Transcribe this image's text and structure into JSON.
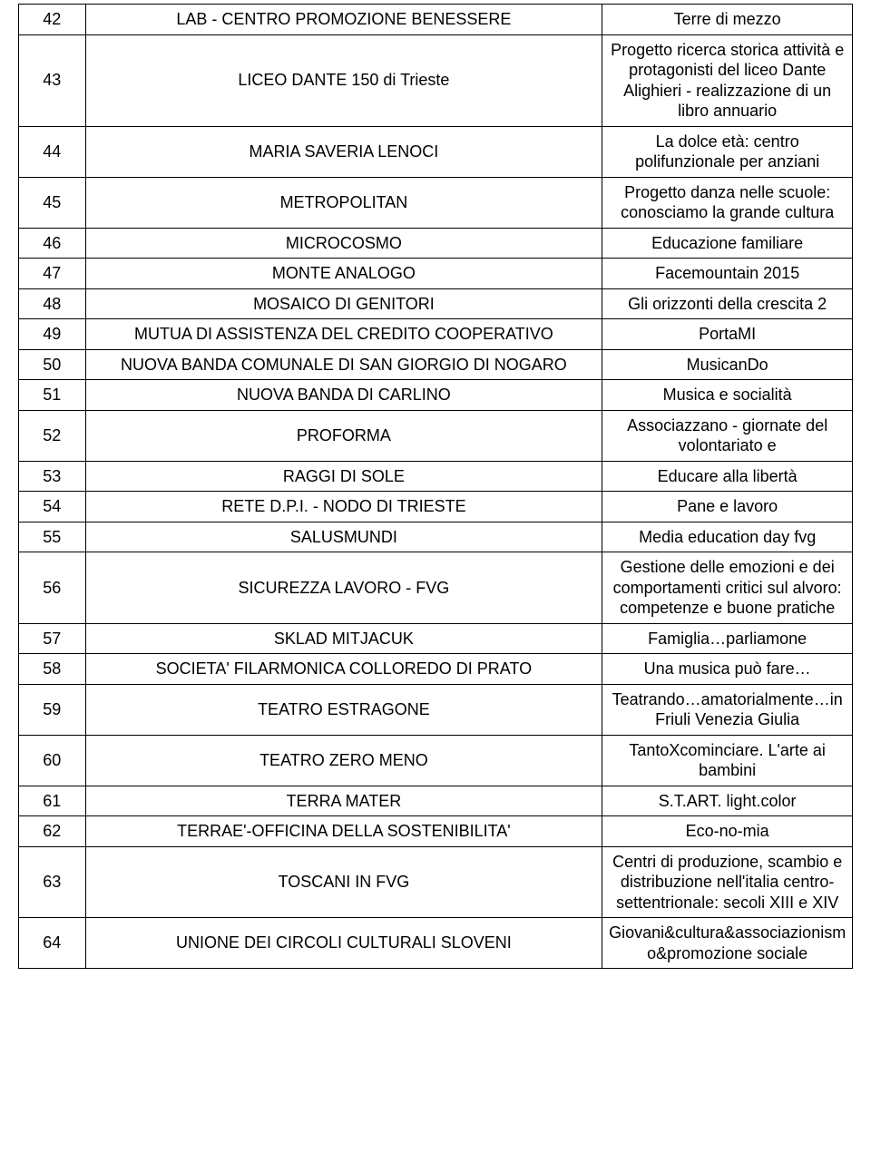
{
  "table": {
    "columns": [
      {
        "key": "n",
        "widthPct": 8,
        "align": "center"
      },
      {
        "key": "org",
        "widthPct": 62,
        "align": "center"
      },
      {
        "key": "proj",
        "widthPct": 30,
        "align": "center"
      }
    ],
    "font_size_pt": 14,
    "border_color": "#000000",
    "background_color": "#ffffff",
    "text_color": "#000000",
    "rows": [
      {
        "n": "42",
        "org": "LAB - CENTRO PROMOZIONE BENESSERE",
        "proj": "Terre di mezzo"
      },
      {
        "n": "43",
        "org": "LICEO DANTE 150 di Trieste",
        "proj": "Progetto ricerca storica attività e protagonisti del liceo Dante Alighieri - realizzazione di un libro annuario"
      },
      {
        "n": "44",
        "org": "MARIA SAVERIA LENOCI",
        "proj": "La dolce età: centro polifunzionale per anziani"
      },
      {
        "n": "45",
        "org": "METROPOLITAN",
        "proj": "Progetto danza nelle scuole: conosciamo la grande cultura"
      },
      {
        "n": "46",
        "org": "MICROCOSMO",
        "proj": "Educazione familiare"
      },
      {
        "n": "47",
        "org": "MONTE ANALOGO",
        "proj": "Facemountain 2015"
      },
      {
        "n": "48",
        "org": "MOSAICO DI GENITORI",
        "proj": "Gli orizzonti della crescita 2"
      },
      {
        "n": "49",
        "org": "MUTUA DI ASSISTENZA DEL CREDITO COOPERATIVO",
        "proj": "PortaMI"
      },
      {
        "n": "50",
        "org": "NUOVA BANDA COMUNALE DI SAN GIORGIO DI NOGARO",
        "proj": "MusicanDo"
      },
      {
        "n": "51",
        "org": "NUOVA BANDA DI CARLINO",
        "proj": "Musica e socialità"
      },
      {
        "n": "52",
        "org": "PROFORMA",
        "proj": "Associazzano - giornate del volontariato e"
      },
      {
        "n": "53",
        "org": "RAGGI DI SOLE",
        "proj": "Educare alla libertà"
      },
      {
        "n": "54",
        "org": "RETE D.P.I. - NODO DI TRIESTE",
        "proj": "Pane e lavoro"
      },
      {
        "n": "55",
        "org": "SALUSMUNDI",
        "proj": "Media education day  fvg"
      },
      {
        "n": "56",
        "org": "SICUREZZA LAVORO - FVG",
        "proj": "Gestione delle emozioni e dei comportamenti critici sul alvoro: competenze e buone pratiche"
      },
      {
        "n": "57",
        "org": "SKLAD MITJACUK",
        "proj": "Famiglia…parliamone"
      },
      {
        "n": "58",
        "org": "SOCIETA' FILARMONICA COLLOREDO DI PRATO",
        "proj": "Una musica può fare…"
      },
      {
        "n": "59",
        "org": "TEATRO ESTRAGONE",
        "proj": "Teatrando…amatorialmente…in Friuli Venezia Giulia"
      },
      {
        "n": "60",
        "org": "TEATRO ZERO MENO",
        "proj": "TantoXcominciare. L'arte ai bambini"
      },
      {
        "n": "61",
        "org": "TERRA MATER",
        "proj": "S.T.ART. light.color"
      },
      {
        "n": "62",
        "org": "TERRAE'-OFFICINA DELLA SOSTENIBILITA'",
        "proj": "Eco-no-mia"
      },
      {
        "n": "63",
        "org": "TOSCANI IN FVG",
        "proj": "Centri di produzione, scambio e distribuzione nell'italia centro-settentrionale: secoli XIII e XIV"
      },
      {
        "n": "64",
        "org": "UNIONE DEI CIRCOLI CULTURALI SLOVENI",
        "proj": "Giovani&cultura&associazionismo&promozione sociale"
      }
    ],
    "row_extra_padding": {
      "43": "tall",
      "46": "tall",
      "56": "med",
      "58": "med",
      "63": "tall"
    }
  }
}
